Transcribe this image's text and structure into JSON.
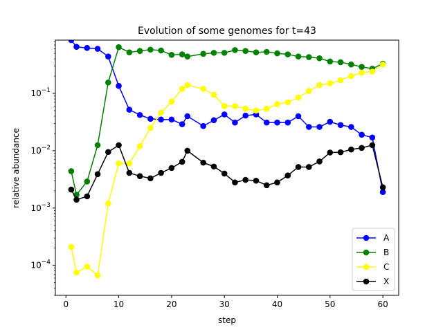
{
  "chart_data": {
    "type": "line",
    "title": "Evolution of some genomes for t=43",
    "xlabel": "step",
    "ylabel": "relative abundance",
    "xlim": [
      -2,
      63
    ],
    "ylim": [
      3e-05,
      0.85
    ],
    "yscale": "log",
    "x_ticks": [
      0,
      10,
      20,
      30,
      40,
      50,
      60
    ],
    "y_ticks": [
      {
        "value": 0.0001,
        "base": "10",
        "exp": "−4"
      },
      {
        "value": 0.001,
        "base": "10",
        "exp": "−3"
      },
      {
        "value": 0.01,
        "base": "10",
        "exp": "−2"
      },
      {
        "value": 0.1,
        "base": "10",
        "exp": "−1"
      }
    ],
    "legend_position": "lower-right",
    "grid": false,
    "series": [
      {
        "name": "A",
        "color": "#0000ff",
        "x": [
          1,
          2,
          4,
          6,
          8,
          10,
          12,
          14,
          16,
          18,
          20,
          22,
          23,
          26,
          28,
          30,
          32,
          34,
          36,
          38,
          40,
          42,
          44,
          46,
          48,
          50,
          52,
          54,
          56,
          58,
          60
        ],
        "y": [
          0.85,
          0.65,
          0.62,
          0.6,
          0.44,
          0.135,
          0.052,
          0.042,
          0.036,
          0.035,
          0.035,
          0.029,
          0.04,
          0.027,
          0.034,
          0.043,
          0.031,
          0.041,
          0.043,
          0.031,
          0.031,
          0.031,
          0.04,
          0.026,
          0.026,
          0.032,
          0.028,
          0.026,
          0.019,
          0.017,
          0.0019
        ]
      },
      {
        "name": "B",
        "color": "#008000",
        "x": [
          1,
          2,
          4,
          6,
          8,
          10,
          12,
          14,
          16,
          18,
          20,
          22,
          23,
          26,
          28,
          30,
          32,
          34,
          36,
          38,
          40,
          42,
          44,
          46,
          48,
          50,
          52,
          54,
          56,
          58,
          60
        ],
        "y": [
          0.0044,
          0.0017,
          0.0029,
          0.0125,
          0.155,
          0.64,
          0.52,
          0.55,
          0.58,
          0.56,
          0.47,
          0.48,
          0.44,
          0.49,
          0.51,
          0.51,
          0.57,
          0.55,
          0.52,
          0.53,
          0.5,
          0.48,
          0.44,
          0.43,
          0.41,
          0.36,
          0.35,
          0.32,
          0.29,
          0.27,
          0.33
        ]
      },
      {
        "name": "C",
        "color": "#ffff00",
        "x": [
          1,
          2,
          4,
          6,
          8,
          10,
          12,
          14,
          16,
          18,
          20,
          22,
          23,
          26,
          28,
          30,
          32,
          34,
          36,
          38,
          40,
          42,
          44,
          46,
          48,
          50,
          52,
          54,
          56,
          58,
          60
        ],
        "y": [
          0.00021,
          7.5e-05,
          9.5e-05,
          6.7e-05,
          0.0012,
          0.006,
          0.006,
          0.012,
          0.025,
          0.046,
          0.072,
          0.12,
          0.14,
          0.12,
          0.095,
          0.06,
          0.06,
          0.054,
          0.05,
          0.054,
          0.065,
          0.07,
          0.085,
          0.11,
          0.14,
          0.15,
          0.17,
          0.2,
          0.23,
          0.24,
          0.32
        ]
      },
      {
        "name": "X",
        "color": "#000000",
        "x": [
          1,
          2,
          4,
          6,
          8,
          10,
          12,
          14,
          16,
          18,
          20,
          22,
          23,
          26,
          28,
          30,
          32,
          34,
          36,
          38,
          40,
          42,
          44,
          46,
          48,
          50,
          52,
          54,
          56,
          58,
          60
        ],
        "y": [
          0.0021,
          0.0014,
          0.0016,
          0.0039,
          0.0095,
          0.0125,
          0.0041,
          0.0036,
          0.0033,
          0.0041,
          0.005,
          0.0064,
          0.01,
          0.0062,
          0.0053,
          0.004,
          0.0028,
          0.0031,
          0.003,
          0.0025,
          0.0028,
          0.0037,
          0.0052,
          0.0052,
          0.0065,
          0.0093,
          0.0094,
          0.0105,
          0.0112,
          0.0125,
          0.0023
        ]
      }
    ]
  }
}
